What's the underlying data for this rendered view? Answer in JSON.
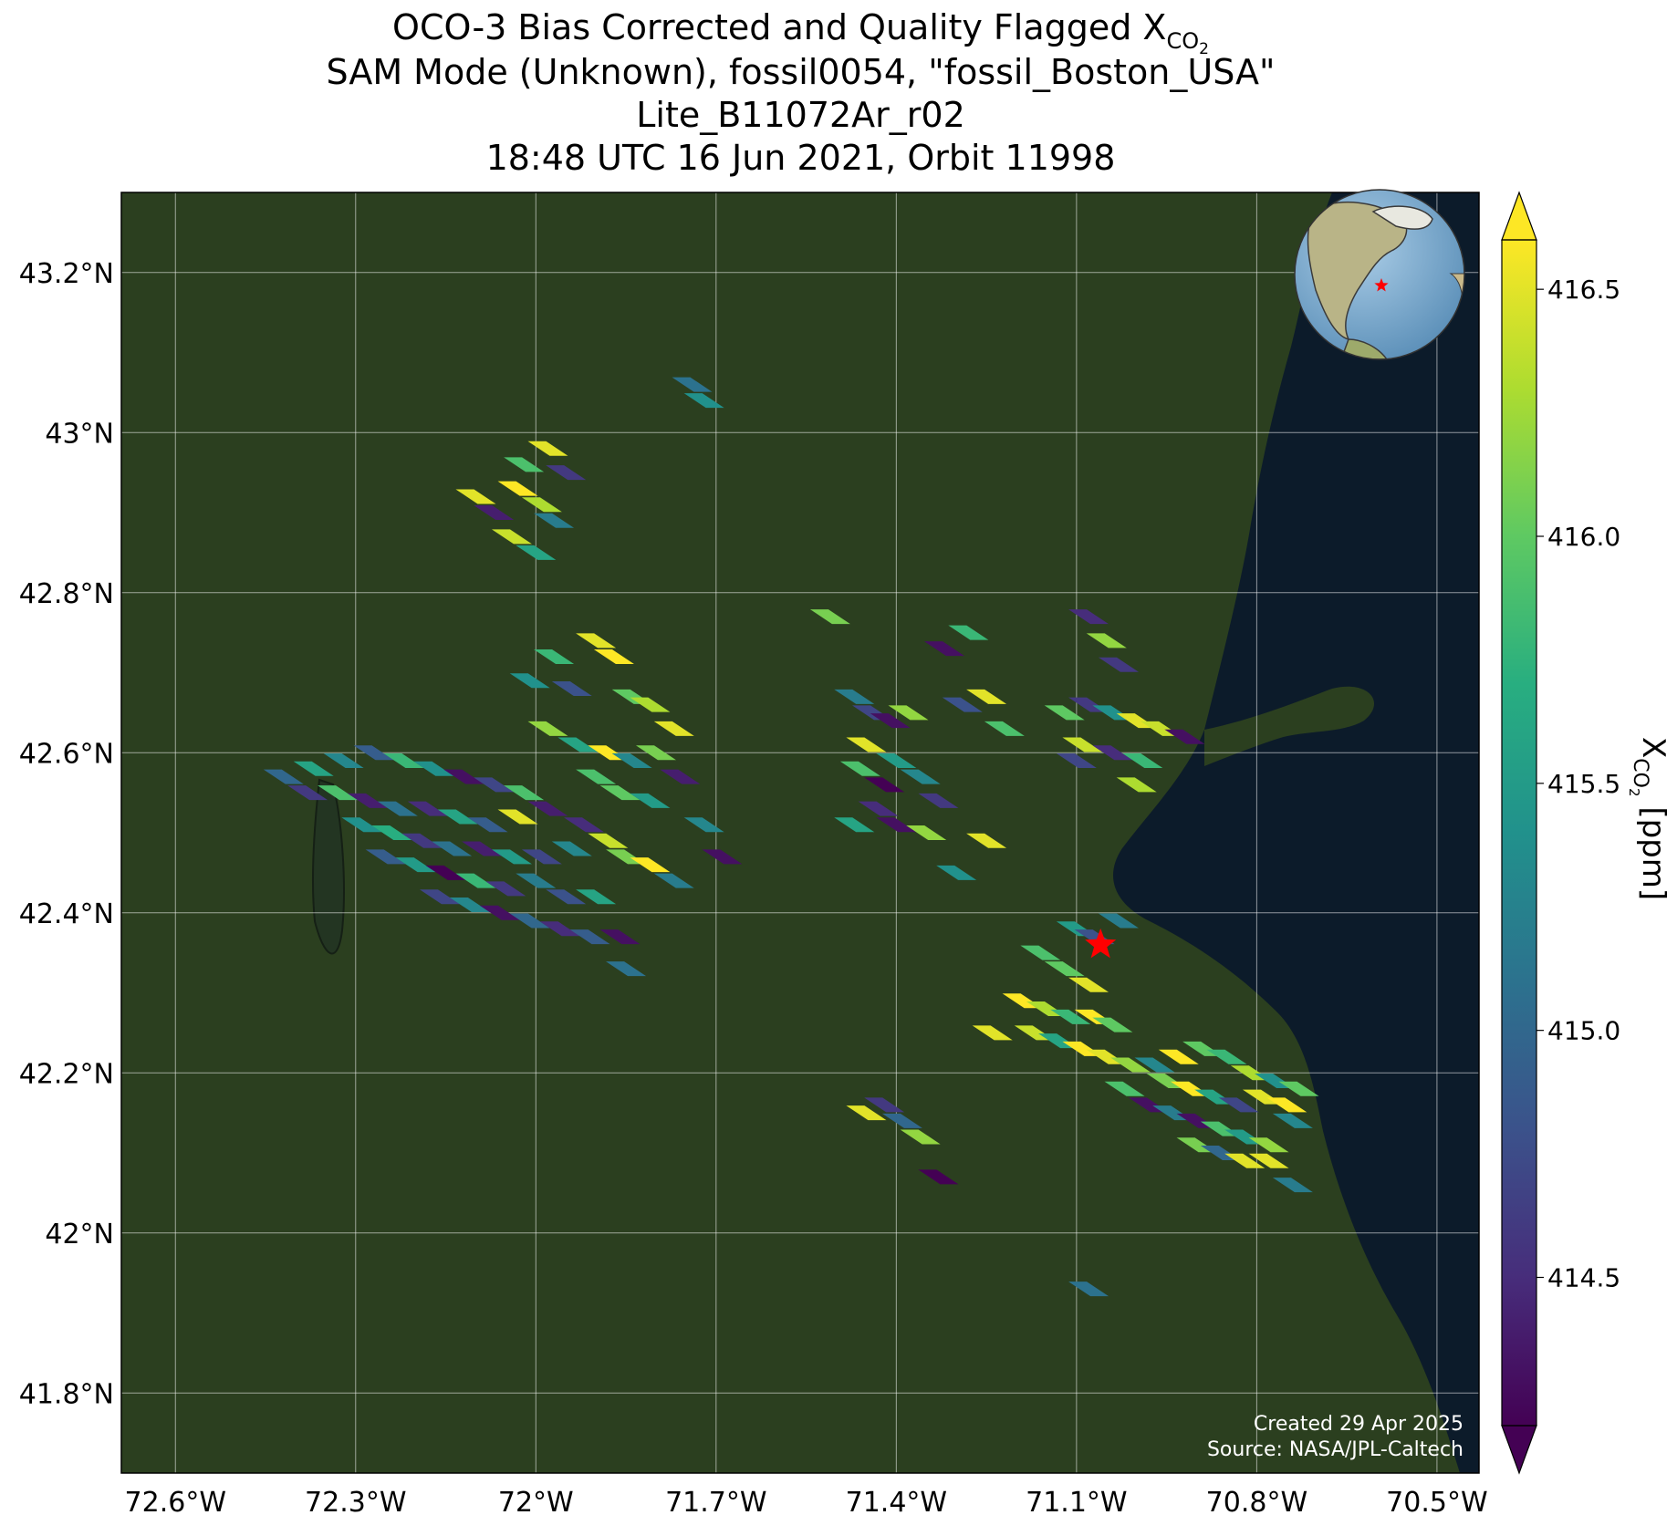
{
  "title": {
    "line1_main": "OCO-3 Bias Corrected and Quality Flagged X",
    "line1_sub": "CO",
    "line1_sub2": "2",
    "line2": "SAM Mode (Unknown), fossil0054, \"fossil_Boston_USA\"",
    "line3": "Lite_B11072Ar_r02",
    "line4": "18:48 UTC 16 Jun 2021, Orbit 11998"
  },
  "map": {
    "lon_range": [
      -72.69,
      -70.43
    ],
    "lat_range": [
      41.7,
      43.3
    ],
    "lon_ticks": [
      {
        "value": -72.6,
        "label": "72.6°W"
      },
      {
        "value": -72.3,
        "label": "72.3°W"
      },
      {
        "value": -72.0,
        "label": "72°W"
      },
      {
        "value": -71.7,
        "label": "71.7°W"
      },
      {
        "value": -71.4,
        "label": "71.4°W"
      },
      {
        "value": -71.1,
        "label": "71.1°W"
      },
      {
        "value": -70.8,
        "label": "70.8°W"
      },
      {
        "value": -70.5,
        "label": "70.5°W"
      }
    ],
    "lat_ticks": [
      {
        "value": 43.2,
        "label": "43.2°N"
      },
      {
        "value": 43.0,
        "label": "43°N"
      },
      {
        "value": 42.8,
        "label": "42.8°N"
      },
      {
        "value": 42.6,
        "label": "42.6°N"
      },
      {
        "value": 42.4,
        "label": "42.4°N"
      },
      {
        "value": 42.2,
        "label": "42.2°N"
      },
      {
        "value": 42.0,
        "label": "42°N"
      },
      {
        "value": 41.8,
        "label": "41.8°N"
      }
    ],
    "target_marker": {
      "lon": -71.06,
      "lat": 42.36,
      "color": "#ff0000"
    },
    "colors": {
      "land": "#2b3f1f",
      "ocean": "#0c1b2a",
      "grid": "#ffffff",
      "marker": "#ff0000"
    }
  },
  "credit": {
    "line1": "Created 29 Apr 2025",
    "line2": "Source: NASA/JPL-Caltech"
  },
  "colorbar": {
    "label_main": "X",
    "label_sub": "CO",
    "label_sub2": "2",
    "label_unit": " [ppm]",
    "vmin": 414.2,
    "vmax": 416.6,
    "extend": "both",
    "colormap": "viridis",
    "ticks": [
      {
        "value": 414.5,
        "label": "414.5"
      },
      {
        "value": 415.0,
        "label": "415.0"
      },
      {
        "value": 415.5,
        "label": "415.5"
      },
      {
        "value": 416.0,
        "label": "416.0"
      },
      {
        "value": 416.5,
        "label": "416.5"
      }
    ]
  },
  "chart_data": {
    "type": "scatter",
    "title": "OCO-3 Bias Corrected and Quality Flagged XCO2",
    "xlabel": "",
    "ylabel": "",
    "colorbar_label": "XCO2 [ppm]",
    "xlim": [
      -72.69,
      -70.43
    ],
    "ylim": [
      41.7,
      43.3
    ],
    "points": [
      [
        -72.03,
        42.93,
        416.6
      ],
      [
        -71.99,
        42.91,
        416.3
      ],
      [
        -72.07,
        42.9,
        414.4
      ],
      [
        -71.97,
        42.89,
        415.2
      ],
      [
        -72.1,
        42.92,
        416.5
      ],
      [
        -71.95,
        42.95,
        414.6
      ],
      [
        -72.04,
        42.87,
        416.4
      ],
      [
        -72.0,
        42.85,
        415.6
      ],
      [
        -71.98,
        42.98,
        416.5
      ],
      [
        -72.02,
        42.96,
        415.9
      ],
      [
        -71.74,
        43.06,
        415.1
      ],
      [
        -71.72,
        43.04,
        415.4
      ],
      [
        -71.9,
        42.74,
        416.5
      ],
      [
        -71.87,
        42.72,
        416.6
      ],
      [
        -71.97,
        42.72,
        415.8
      ],
      [
        -72.01,
        42.69,
        415.4
      ],
      [
        -71.94,
        42.68,
        414.8
      ],
      [
        -71.84,
        42.67,
        416.0
      ],
      [
        -71.81,
        42.66,
        416.3
      ],
      [
        -71.77,
        42.63,
        416.5
      ],
      [
        -71.98,
        42.63,
        416.2
      ],
      [
        -71.93,
        42.61,
        415.6
      ],
      [
        -71.88,
        42.6,
        416.6
      ],
      [
        -71.84,
        42.59,
        415.3
      ],
      [
        -71.8,
        42.6,
        416.1
      ],
      [
        -71.76,
        42.57,
        414.4
      ],
      [
        -71.9,
        42.57,
        415.9
      ],
      [
        -71.86,
        42.55,
        416.0
      ],
      [
        -71.81,
        42.54,
        415.5
      ],
      [
        -71.92,
        42.51,
        414.5
      ],
      [
        -71.88,
        42.49,
        416.4
      ],
      [
        -71.85,
        42.47,
        416.1
      ],
      [
        -71.81,
        42.46,
        416.6
      ],
      [
        -71.77,
        42.44,
        415.2
      ],
      [
        -71.72,
        42.51,
        415.3
      ],
      [
        -71.69,
        42.47,
        414.3
      ],
      [
        -72.42,
        42.57,
        415.0
      ],
      [
        -72.37,
        42.58,
        415.6
      ],
      [
        -72.32,
        42.59,
        415.3
      ],
      [
        -72.27,
        42.6,
        414.9
      ],
      [
        -72.22,
        42.59,
        415.8
      ],
      [
        -72.17,
        42.58,
        415.4
      ],
      [
        -72.12,
        42.57,
        414.3
      ],
      [
        -72.07,
        42.56,
        414.7
      ],
      [
        -72.02,
        42.55,
        415.9
      ],
      [
        -72.38,
        42.55,
        414.6
      ],
      [
        -72.33,
        42.55,
        415.9
      ],
      [
        -72.28,
        42.54,
        414.4
      ],
      [
        -72.23,
        42.53,
        415.1
      ],
      [
        -72.18,
        42.53,
        414.5
      ],
      [
        -72.13,
        42.52,
        415.6
      ],
      [
        -72.08,
        42.51,
        414.9
      ],
      [
        -72.03,
        42.52,
        416.5
      ],
      [
        -71.98,
        42.53,
        414.4
      ],
      [
        -72.29,
        42.51,
        415.4
      ],
      [
        -72.24,
        42.5,
        415.7
      ],
      [
        -72.19,
        42.49,
        414.6
      ],
      [
        -72.14,
        42.48,
        415.1
      ],
      [
        -72.09,
        42.48,
        414.4
      ],
      [
        -72.04,
        42.47,
        415.5
      ],
      [
        -71.99,
        42.47,
        414.7
      ],
      [
        -71.94,
        42.48,
        415.3
      ],
      [
        -72.25,
        42.47,
        414.9
      ],
      [
        -72.2,
        42.46,
        415.5
      ],
      [
        -72.15,
        42.45,
        414.2
      ],
      [
        -72.1,
        42.44,
        415.8
      ],
      [
        -72.05,
        42.43,
        414.6
      ],
      [
        -72.0,
        42.44,
        415.2
      ],
      [
        -71.95,
        42.42,
        414.8
      ],
      [
        -71.9,
        42.42,
        415.6
      ],
      [
        -72.16,
        42.42,
        414.7
      ],
      [
        -72.11,
        42.41,
        415.3
      ],
      [
        -72.06,
        42.4,
        414.3
      ],
      [
        -72.01,
        42.39,
        415.0
      ],
      [
        -71.96,
        42.38,
        414.5
      ],
      [
        -71.91,
        42.37,
        414.9
      ],
      [
        -71.86,
        42.37,
        414.3
      ],
      [
        -71.85,
        42.33,
        415.1
      ],
      [
        -71.47,
        42.67,
        415.2
      ],
      [
        -71.44,
        42.65,
        414.7
      ],
      [
        -71.41,
        42.64,
        414.3
      ],
      [
        -71.38,
        42.65,
        416.2
      ],
      [
        -71.45,
        42.61,
        416.5
      ],
      [
        -71.4,
        42.59,
        415.5
      ],
      [
        -71.46,
        42.58,
        415.9
      ],
      [
        -71.36,
        42.57,
        415.3
      ],
      [
        -71.42,
        42.56,
        414.2
      ],
      [
        -71.33,
        42.54,
        414.6
      ],
      [
        -71.43,
        42.53,
        414.5
      ],
      [
        -71.47,
        42.51,
        415.6
      ],
      [
        -71.4,
        42.51,
        414.3
      ],
      [
        -71.35,
        42.5,
        416.2
      ],
      [
        -71.25,
        42.49,
        416.5
      ],
      [
        -71.3,
        42.45,
        415.4
      ],
      [
        -71.51,
        42.77,
        416.1
      ],
      [
        -71.28,
        42.75,
        415.8
      ],
      [
        -71.32,
        42.73,
        414.3
      ],
      [
        -71.29,
        42.66,
        414.8
      ],
      [
        -71.25,
        42.67,
        416.5
      ],
      [
        -71.22,
        42.63,
        415.9
      ],
      [
        -71.08,
        42.77,
        414.5
      ],
      [
        -71.05,
        42.74,
        416.2
      ],
      [
        -71.03,
        42.71,
        414.6
      ],
      [
        -71.12,
        42.65,
        416.0
      ],
      [
        -71.08,
        42.66,
        414.6
      ],
      [
        -71.04,
        42.65,
        415.4
      ],
      [
        -71.0,
        42.64,
        416.5
      ],
      [
        -70.96,
        42.63,
        416.4
      ],
      [
        -70.92,
        42.62,
        414.3
      ],
      [
        -71.09,
        42.61,
        416.4
      ],
      [
        -71.04,
        42.6,
        414.5
      ],
      [
        -70.99,
        42.59,
        415.8
      ],
      [
        -71.0,
        42.56,
        416.3
      ],
      [
        -71.1,
        42.59,
        414.7
      ],
      [
        -71.1,
        42.38,
        415.5
      ],
      [
        -71.07,
        42.37,
        414.8
      ],
      [
        -71.03,
        42.39,
        415.2
      ],
      [
        -71.16,
        42.35,
        415.9
      ],
      [
        -71.12,
        42.33,
        416.0
      ],
      [
        -71.08,
        42.31,
        416.5
      ],
      [
        -71.19,
        42.29,
        416.6
      ],
      [
        -71.15,
        42.28,
        416.3
      ],
      [
        -71.11,
        42.27,
        415.8
      ],
      [
        -71.07,
        42.27,
        416.6
      ],
      [
        -71.04,
        42.26,
        416.0
      ],
      [
        -71.17,
        42.25,
        416.4
      ],
      [
        -71.13,
        42.24,
        415.6
      ],
      [
        -71.09,
        42.23,
        416.6
      ],
      [
        -71.05,
        42.22,
        416.5
      ],
      [
        -71.01,
        42.21,
        416.2
      ],
      [
        -70.97,
        42.21,
        415.3
      ],
      [
        -71.24,
        42.25,
        416.5
      ],
      [
        -70.93,
        42.22,
        416.6
      ],
      [
        -70.89,
        42.23,
        416.0
      ],
      [
        -70.85,
        42.22,
        415.8
      ],
      [
        -70.81,
        42.2,
        416.3
      ],
      [
        -70.77,
        42.19,
        415.4
      ],
      [
        -70.73,
        42.18,
        416.0
      ],
      [
        -70.95,
        42.19,
        416.1
      ],
      [
        -70.91,
        42.18,
        416.6
      ],
      [
        -70.87,
        42.17,
        415.6
      ],
      [
        -70.83,
        42.16,
        414.7
      ],
      [
        -70.79,
        42.17,
        416.5
      ],
      [
        -70.75,
        42.16,
        416.6
      ],
      [
        -71.02,
        42.18,
        415.9
      ],
      [
        -70.98,
        42.16,
        414.3
      ],
      [
        -70.94,
        42.15,
        415.2
      ],
      [
        -70.9,
        42.14,
        414.3
      ],
      [
        -70.86,
        42.13,
        415.9
      ],
      [
        -70.82,
        42.12,
        415.5
      ],
      [
        -70.78,
        42.11,
        416.2
      ],
      [
        -70.74,
        42.14,
        415.3
      ],
      [
        -70.9,
        42.11,
        416.1
      ],
      [
        -70.86,
        42.1,
        415.0
      ],
      [
        -70.82,
        42.09,
        416.5
      ],
      [
        -70.78,
        42.09,
        416.5
      ],
      [
        -70.74,
        42.06,
        415.2
      ],
      [
        -71.42,
        42.16,
        414.6
      ],
      [
        -71.39,
        42.14,
        415.0
      ],
      [
        -71.45,
        42.15,
        416.5
      ],
      [
        -71.36,
        42.12,
        416.2
      ],
      [
        -71.33,
        42.07,
        414.2
      ],
      [
        -71.08,
        41.93,
        415.1
      ]
    ]
  }
}
